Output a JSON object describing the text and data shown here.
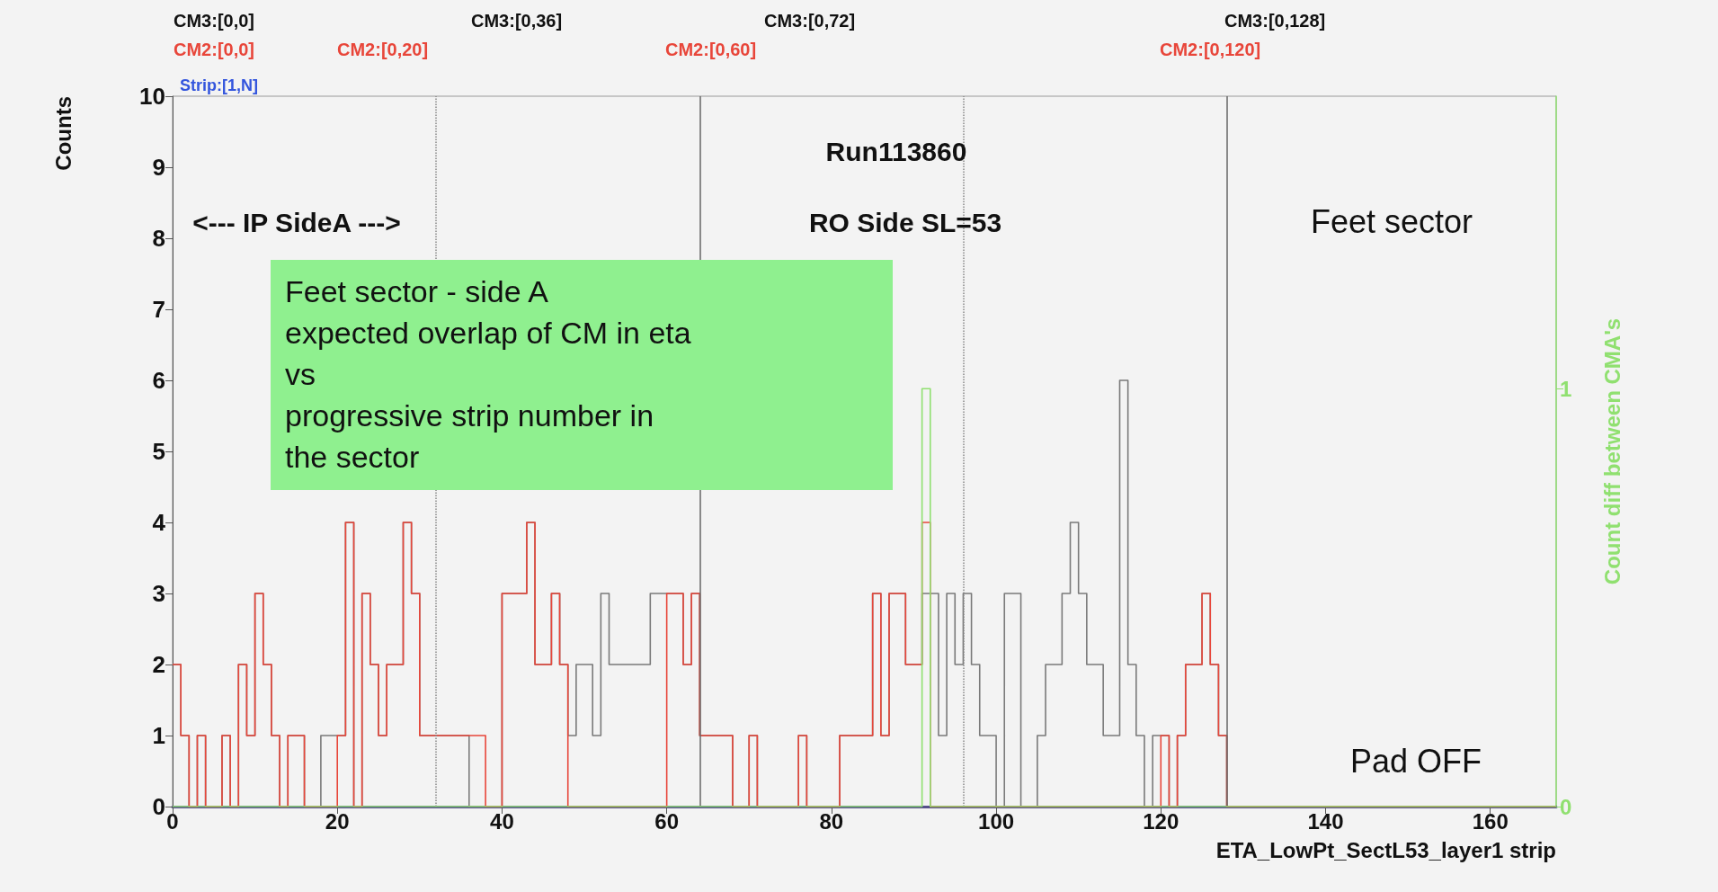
{
  "chart_data": {
    "type": "histogram",
    "xlabel": "ETA_LowPt_SectL53_layer1 strip",
    "ylabel": "Counts",
    "y2label": "Count diff between CMA's",
    "bins": [
      0,
      1,
      2,
      3,
      4,
      5,
      6,
      7,
      8,
      9,
      10,
      11,
      12,
      13,
      14,
      15,
      16,
      17,
      18,
      19,
      20,
      21,
      22,
      23,
      24,
      25,
      26,
      27,
      28,
      29,
      30,
      31,
      32,
      33,
      34,
      35,
      36,
      37,
      38,
      39,
      40,
      41,
      42,
      43,
      44,
      45,
      46,
      47,
      48,
      49,
      50,
      51,
      52,
      53,
      54,
      55,
      56,
      57,
      58,
      59,
      60,
      61,
      62,
      63,
      64,
      65,
      66,
      67,
      68,
      69,
      70,
      71,
      72,
      73,
      74,
      75,
      76,
      77,
      78,
      79,
      80,
      81,
      82,
      83,
      84,
      85,
      86,
      87,
      88,
      89,
      90,
      91,
      92,
      93,
      94,
      95,
      96,
      97,
      98,
      99,
      100,
      101,
      102,
      103,
      104,
      105,
      106,
      107,
      108,
      109,
      110,
      111,
      112,
      113,
      114,
      115,
      116,
      117,
      118,
      119,
      120,
      121,
      122,
      123,
      124,
      125,
      126,
      127,
      128,
      129,
      130,
      131,
      132,
      133,
      134,
      135,
      136,
      137,
      138,
      139,
      140,
      141,
      142,
      143,
      144,
      145,
      146,
      147,
      148,
      149,
      150,
      151,
      152,
      153,
      154,
      155,
      156,
      157,
      158,
      159,
      160,
      161,
      162,
      163,
      164,
      165,
      166,
      167,
      168
    ],
    "series": [
      {
        "color": "#7a7a7a",
        "values": [
          2,
          1,
          0,
          1,
          0,
          0,
          1,
          0,
          2,
          1,
          3,
          2,
          1,
          0,
          1,
          1,
          0,
          0,
          1,
          1,
          1,
          4,
          0,
          3,
          2,
          1,
          2,
          2,
          4,
          3,
          1,
          1,
          1,
          1,
          1,
          1,
          0,
          0,
          0,
          0,
          3,
          3,
          3,
          4,
          2,
          2,
          3,
          2,
          1,
          2,
          2,
          1,
          3,
          2,
          2,
          2,
          2,
          2,
          3,
          3,
          3,
          3,
          2,
          3,
          1,
          1,
          1,
          1,
          0,
          0,
          1,
          0,
          0,
          0,
          0,
          0,
          1,
          0,
          0,
          0,
          0,
          1,
          1,
          1,
          1,
          3,
          1,
          3,
          3,
          2,
          2,
          3,
          3,
          1,
          3,
          2,
          3,
          2,
          1,
          1,
          0,
          3,
          3,
          0,
          0,
          1,
          2,
          2,
          3,
          4,
          3,
          2,
          2,
          1,
          1,
          6,
          2,
          1,
          0,
          1,
          1,
          0,
          1,
          2,
          2,
          3,
          2,
          1,
          0,
          0,
          0,
          0,
          0,
          0,
          0,
          0,
          0,
          0,
          0,
          0,
          0,
          0,
          0,
          0,
          0,
          0,
          0,
          0,
          0,
          0,
          0,
          0,
          0,
          0,
          0,
          0,
          0,
          0,
          0,
          0,
          0,
          0,
          0,
          0,
          0,
          0,
          0,
          0
        ]
      },
      {
        "color": "#e8463a",
        "values": [
          2,
          1,
          0,
          1,
          0,
          0,
          1,
          0,
          2,
          1,
          3,
          2,
          1,
          0,
          1,
          1,
          0,
          0,
          0,
          0,
          1,
          4,
          0,
          3,
          2,
          1,
          2,
          2,
          4,
          3,
          1,
          1,
          1,
          1,
          1,
          1,
          1,
          1,
          0,
          0,
          3,
          3,
          3,
          4,
          2,
          2,
          3,
          2,
          0,
          0,
          0,
          0,
          0,
          0,
          0,
          0,
          0,
          0,
          0,
          0,
          3,
          3,
          2,
          3,
          1,
          1,
          1,
          1,
          0,
          0,
          1,
          0,
          0,
          0,
          0,
          0,
          1,
          0,
          0,
          0,
          0,
          1,
          1,
          1,
          1,
          3,
          1,
          3,
          3,
          2,
          2,
          4,
          0,
          0,
          0,
          0,
          0,
          0,
          0,
          0,
          0,
          0,
          0,
          0,
          0,
          0,
          0,
          0,
          0,
          0,
          0,
          0,
          0,
          0,
          0,
          0,
          0,
          0,
          0,
          0,
          1,
          0,
          1,
          2,
          2,
          3,
          2,
          1,
          0,
          0,
          0,
          0,
          0,
          0,
          0,
          0,
          0,
          0,
          0,
          0,
          0,
          0,
          0,
          0,
          0,
          0,
          0,
          0,
          0,
          0,
          0,
          0,
          0,
          0,
          0,
          0,
          0,
          0,
          0,
          0,
          0,
          0,
          0,
          0,
          0,
          0,
          0,
          0
        ]
      },
      {
        "color": "#90e070",
        "axis": "y2",
        "values": [
          0,
          0,
          0,
          0,
          0,
          0,
          0,
          0,
          0,
          0,
          0,
          0,
          0,
          0,
          0,
          0,
          0,
          0,
          0,
          0,
          0,
          0,
          0,
          0,
          0,
          0,
          0,
          0,
          0,
          0,
          0,
          0,
          0,
          0,
          0,
          0,
          0,
          0,
          0,
          0,
          0,
          0,
          0,
          0,
          0,
          0,
          0,
          0,
          0,
          0,
          0,
          0,
          0,
          0,
          0,
          0,
          0,
          0,
          0,
          0,
          0,
          0,
          0,
          0,
          0,
          0,
          0,
          0,
          0,
          0,
          0,
          0,
          0,
          0,
          0,
          0,
          0,
          0,
          0,
          0,
          0,
          0,
          0,
          0,
          0,
          0,
          0,
          0,
          0,
          0,
          0,
          1,
          0,
          0,
          0,
          0,
          0,
          0,
          0,
          0,
          0,
          0,
          0,
          0,
          0,
          0,
          0,
          0,
          0,
          0,
          0,
          0,
          0,
          0,
          0,
          0,
          0,
          0,
          0,
          0,
          0,
          0,
          0,
          0,
          0,
          0,
          0,
          0,
          0,
          0,
          0,
          0,
          0,
          0,
          0,
          0,
          0,
          0,
          0,
          0,
          0,
          0,
          0,
          0,
          0,
          0,
          0,
          0,
          0,
          0,
          0,
          0,
          0,
          0,
          0,
          0,
          0,
          0,
          0,
          0,
          0,
          0,
          0,
          0,
          0,
          0,
          0,
          0
        ]
      }
    ],
    "xlim": [
      0,
      168
    ],
    "xticks": [
      0,
      20,
      40,
      60,
      80,
      100,
      120,
      140,
      160
    ],
    "ylim": [
      0,
      10
    ],
    "yticks": [
      0,
      1,
      2,
      3,
      4,
      5,
      6,
      7,
      8,
      9,
      10
    ],
    "y2lim": [
      0,
      1.7
    ],
    "y2ticks": [
      0,
      1
    ],
    "grid": false,
    "marker": "none",
    "line_style": "solid",
    "ref_lines": [
      {
        "axis": "x",
        "value": 32,
        "line_style": "dotted",
        "color": "#888888"
      },
      {
        "axis": "x",
        "value": 64,
        "line_style": "solid",
        "color": "#666666"
      },
      {
        "axis": "x",
        "value": 96,
        "line_style": "dotted",
        "color": "#888888"
      },
      {
        "axis": "x",
        "value": 128,
        "line_style": "solid",
        "color": "#666666"
      }
    ],
    "annotations": [
      "CM3:[0,0]",
      "CM3:[0,36]",
      "CM3:[0,72]",
      "CM3:[0,128]",
      "CM2:[0,0]",
      "CM2:[0,20]",
      "CM2:[0,60]",
      "CM2:[0,120]",
      "Strip:[1,N]",
      "Run113860",
      "<--- IP SideA --->",
      "RO Side SL=53",
      "Feet sector",
      "Pad OFF",
      "Feet sector - side A\nexpected overlap of CM in eta\nvs\nprogressive strip number in\nthe sector"
    ]
  }
}
